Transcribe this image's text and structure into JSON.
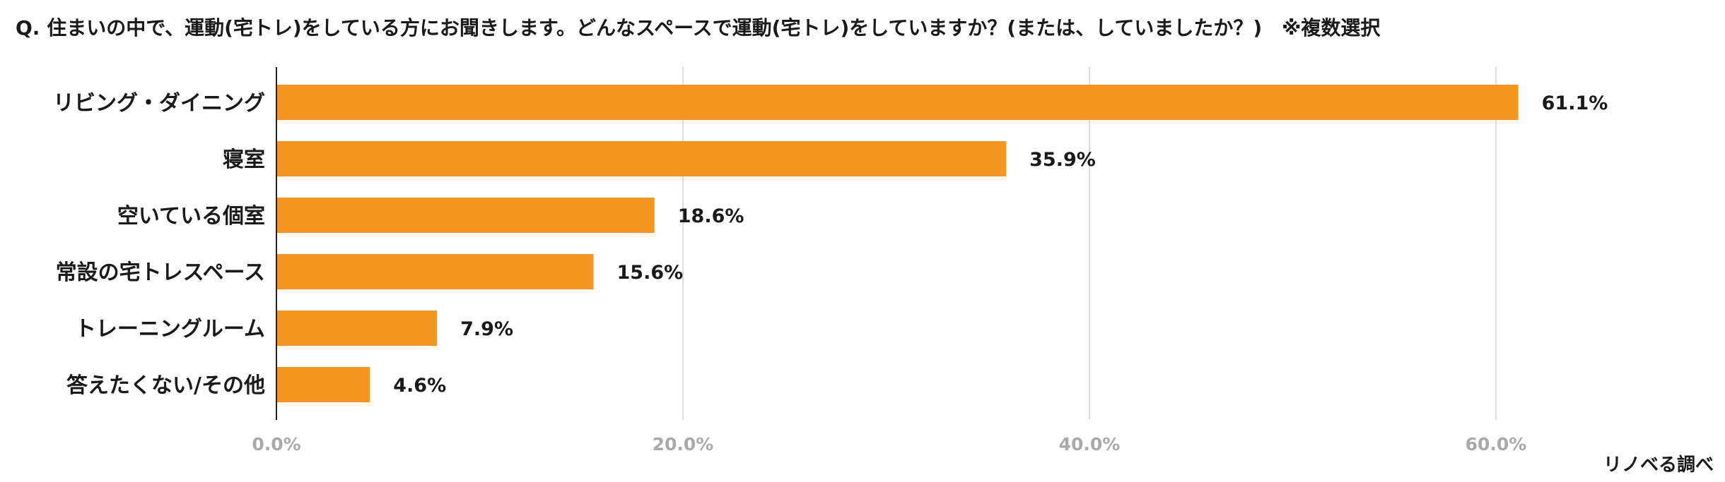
{
  "question": "Q.  住まいの中で、運動(宅トレ)をしている方にお聞きします。どんなスペースで運動(宅トレ)をしていますか？(または、していましたか？)　※複数選択",
  "source": "リノベる調べ",
  "chart_data": {
    "type": "bar",
    "orientation": "horizontal",
    "categories": [
      "リビング・ダイニング",
      "寝室",
      "空いている個室",
      "常設の宅トレスペース",
      "トレーニングルーム",
      "答えたくない/その他"
    ],
    "values": [
      61.1,
      35.9,
      18.6,
      15.6,
      7.9,
      4.6
    ],
    "value_labels": [
      "61.1%",
      "35.9%",
      "18.6%",
      "15.6%",
      "7.9%",
      "4.6%"
    ],
    "xlim": [
      0,
      60
    ],
    "xticks": [
      0,
      20,
      40,
      60
    ],
    "xtick_labels": [
      "0.0%",
      "20.0%",
      "40.0%",
      "60.0%"
    ],
    "grid": true,
    "bar_color": "#f39720",
    "grid_color": "#dddddd",
    "axis_color": "#222222"
  }
}
